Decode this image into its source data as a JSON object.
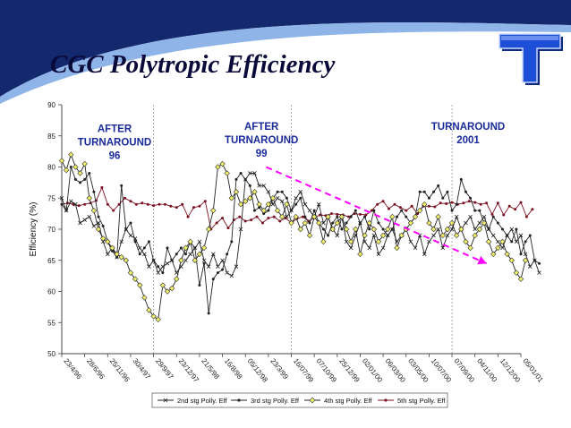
{
  "slide": {
    "title": "CGC Polytropic Efficiency",
    "logo_letter": "T",
    "colors": {
      "title": "#0a0a3a",
      "wave_dark": "#14286e",
      "wave_light": "#8fb4e8",
      "logo": "#1c4fd6",
      "annotation": "#1a2a9a",
      "trend": "#ff00ff"
    }
  },
  "chart_data": {
    "type": "line",
    "title": "",
    "ylabel": "Efficiency (%)",
    "xlabel": "",
    "ylim": [
      50,
      90
    ],
    "yticks": [
      50,
      55,
      60,
      65,
      70,
      75,
      80,
      85,
      90
    ],
    "x_tick_labels": [
      "23/4/96",
      "28/6/96",
      "25/11/96",
      "30/4/97",
      "29/9/97",
      "23/12/97",
      "21/5/98",
      "16/8/98",
      "05/12/98",
      "23/3/99",
      "16/07/99",
      "07/10/99",
      "25/12/99",
      "02/01/00",
      "06/03/00",
      "03/05/00",
      "10/07/00",
      "07/09/00",
      "04/11/00",
      "12/12/00",
      "05/01/01"
    ],
    "annotations": [
      {
        "lines": [
          "AFTER",
          "TURNAROUND",
          "96"
        ],
        "x_index": 2.3,
        "y": 85.6
      },
      {
        "lines": [
          "AFTER",
          "TURNAROUND",
          "99"
        ],
        "x_index": 8.7,
        "y": 86.0
      },
      {
        "lines": [
          "TURNAROUND",
          "2001"
        ],
        "x_index": 17.7,
        "y": 86.0
      }
    ],
    "dividers_x_index": [
      4.0,
      10.0,
      17.0
    ],
    "trend_arrow": {
      "from": [
        8.9,
        80.0
      ],
      "to": [
        18.5,
        64.5
      ]
    },
    "legend_position": "bottom",
    "series": [
      {
        "name": "2nd stg Polly. Eff",
        "color": "#222222",
        "marker": "x",
        "x_start": 0,
        "x_step": 0.2,
        "values": [
          75,
          73,
          74.5,
          74,
          71,
          71.5,
          72,
          70.5,
          71,
          68,
          66,
          67,
          65.5,
          68,
          70,
          69,
          68.5,
          67,
          66,
          64,
          65,
          63,
          64,
          64.5,
          65,
          63,
          64,
          65,
          66,
          67,
          68,
          65,
          64,
          66,
          64,
          65,
          63,
          62.5,
          64,
          70,
          78,
          79,
          79,
          77,
          77,
          76,
          74,
          75,
          74.5,
          72,
          73,
          75,
          76,
          74,
          73,
          72,
          74,
          71,
          72,
          70,
          69,
          72,
          68,
          67,
          69,
          71,
          68,
          67,
          69,
          66,
          67,
          69,
          70,
          68,
          69,
          70,
          68,
          67,
          69,
          66,
          68,
          69,
          70,
          67,
          69,
          70,
          72,
          70,
          71,
          72,
          70,
          71,
          72,
          70,
          69,
          68,
          67,
          69,
          70,
          68,
          69,
          66,
          64,
          65,
          63
        ]
      },
      {
        "name": "3rd stg Polly. Eff",
        "color": "#222222",
        "marker": "dot",
        "x_start": 0,
        "x_step": 0.2,
        "values": [
          74,
          73,
          80,
          78,
          77.5,
          78,
          79,
          76,
          72,
          70.5,
          68,
          66.5,
          65.5,
          77,
          70,
          71,
          68,
          66,
          67,
          68,
          65,
          64,
          63,
          67,
          65,
          66,
          67,
          66,
          68,
          67,
          61,
          64.5,
          56.5,
          62,
          63,
          63.5,
          66,
          68,
          78,
          79,
          78,
          77,
          73,
          73.5,
          72.5,
          73,
          75,
          76,
          76,
          75,
          73,
          74,
          75,
          72,
          71,
          73,
          71,
          70,
          69,
          71,
          72,
          70,
          71,
          72,
          73,
          71,
          72,
          70,
          73,
          71,
          70,
          69,
          70,
          72,
          73,
          72,
          71,
          72,
          76,
          76,
          75,
          76,
          77,
          75,
          76,
          73,
          74,
          78,
          76,
          75,
          73,
          73,
          71,
          70,
          72,
          71,
          70,
          69,
          68,
          70,
          66,
          68,
          69,
          65,
          64.5
        ]
      },
      {
        "name": "4th stg Polly. Eff",
        "color": "#222222",
        "marker": "diamond",
        "x_start": 0,
        "x_step": 0.2,
        "values": [
          81,
          79.5,
          82,
          80,
          79,
          80.5,
          75,
          73,
          70,
          68.5,
          68,
          67,
          66,
          65.5,
          65,
          63,
          62,
          61,
          59,
          57,
          56,
          55.5,
          61,
          60,
          60.5,
          62,
          65,
          67,
          68,
          65,
          66,
          67,
          70,
          73,
          80,
          80.5,
          79,
          75,
          76,
          74,
          74.5,
          75,
          76,
          74,
          73,
          74,
          75,
          73,
          72,
          74,
          71,
          72,
          70,
          71,
          69,
          72,
          71,
          68,
          72,
          70,
          71,
          72,
          70,
          68,
          70,
          66,
          69,
          71,
          70,
          68,
          69,
          70,
          72,
          67,
          69,
          70,
          71,
          72,
          73,
          74,
          71,
          70,
          72,
          69,
          70,
          71,
          69,
          70,
          68,
          67,
          69,
          70,
          71,
          68,
          66,
          67,
          68,
          66,
          65,
          63,
          62,
          65
        ]
      },
      {
        "name": "5th stg Polly. Eff",
        "color": "#7a1020",
        "marker": "dot",
        "x_start": 0,
        "x_step": 0.25,
        "values": [
          74,
          74.2,
          74,
          73.8,
          74,
          74.2,
          74.6,
          76.7,
          74,
          73,
          74,
          75,
          74.5,
          74,
          74.2,
          74,
          73.8,
          74,
          74,
          73.7,
          73.5,
          74,
          72,
          73.5,
          73.7,
          74.5,
          70,
          71,
          71.8,
          70.2,
          71.5,
          72,
          71.3,
          71.5,
          72,
          71,
          71.8,
          72,
          71.3,
          71.8,
          71,
          71.7,
          72,
          71.3,
          71.8,
          72.3,
          72.2,
          72.5,
          72.4,
          72.3,
          72,
          72.5,
          72.4,
          72.3,
          73,
          74,
          74.5,
          73.3,
          74,
          73.5,
          73,
          73.7,
          72.5,
          73.7,
          73.7,
          73.6,
          74.2,
          74.1,
          74.3,
          74,
          74.2,
          74.5,
          74.3,
          74,
          74.2,
          72.4,
          74.2,
          72.3,
          73.7,
          73.2,
          74.3,
          72,
          73.2
        ]
      }
    ]
  }
}
